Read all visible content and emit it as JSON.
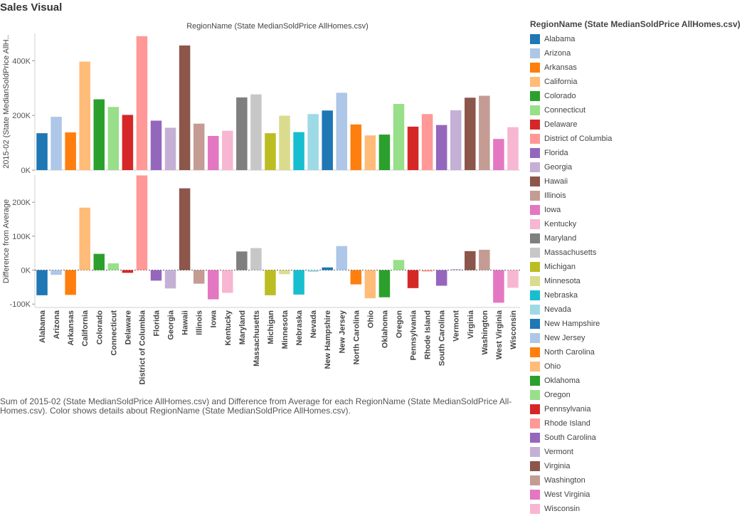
{
  "page": {
    "title": "Sales Visual"
  },
  "caption": "Sum of 2015-02 (State MedianSoldPrice AllHomes.csv) and Difference from Average for each RegionName (State MedianSoldPrice All-Homes.csv).  Color shows details about RegionName (State MedianSoldPrice AllHomes.csv).",
  "legend": {
    "title": "RegionName (State MedianSoldPrice AllHomes.csv)"
  },
  "chart_data": {
    "type": "bar",
    "title": "RegionName (State MedianSoldPrice AllHomes.csv)",
    "categories": [
      "Alabama",
      "Arizona",
      "Arkansas",
      "California",
      "Colorado",
      "Connecticut",
      "Delaware",
      "District of Columbia",
      "Florida",
      "Georgia",
      "Hawaii",
      "Illinois",
      "Iowa",
      "Kentucky",
      "Maryland",
      "Massachusetts",
      "Michigan",
      "Minnesota",
      "Nebraska",
      "Nevada",
      "New Hampshire",
      "New Jersey",
      "North Carolina",
      "Ohio",
      "Oklahoma",
      "Oregon",
      "Pennsylvania",
      "Rhode Island",
      "South Carolina",
      "Vermont",
      "Virginia",
      "Washington",
      "West Virginia",
      "Wisconsin"
    ],
    "colors": [
      "#1f77b4",
      "#aec7e8",
      "#ff7f0e",
      "#ffbb78",
      "#2ca02c",
      "#98df8a",
      "#d62728",
      "#ff9896",
      "#9467bd",
      "#c5b0d5",
      "#8c564b",
      "#c49c94",
      "#e377c2",
      "#f7b6d2",
      "#7f7f7f",
      "#c7c7c7",
      "#bcbd22",
      "#dbdb8d",
      "#17becf",
      "#9edae5",
      "#1f77b4",
      "#aec7e8",
      "#ff7f0e",
      "#ffbb78",
      "#2ca02c",
      "#98df8a",
      "#d62728",
      "#ff9896",
      "#9467bd",
      "#c5b0d5",
      "#8c564b",
      "#c49c94",
      "#e377c2",
      "#f7b6d2"
    ],
    "panels": [
      {
        "ylabel": "2015-02 (State MedianSoldPrice AllH..",
        "ylim": [
          0,
          500000
        ],
        "ticks": [
          0,
          200000,
          400000
        ],
        "tick_labels": [
          "0K",
          "200K",
          "400K"
        ],
        "values": [
          135000,
          195000,
          138000,
          397000,
          259000,
          231000,
          202000,
          490000,
          181000,
          155000,
          456000,
          170000,
          125000,
          144000,
          266000,
          277000,
          135000,
          199000,
          139000,
          205000,
          218000,
          283000,
          167000,
          127000,
          130000,
          242000,
          159000,
          205000,
          165000,
          219000,
          265000,
          272000,
          114000,
          157000
        ]
      },
      {
        "ylabel": "Difference from Average",
        "ylim": [
          -110000,
          280000
        ],
        "ticks": [
          -100000,
          0,
          100000,
          200000
        ],
        "tick_labels": [
          "-100K",
          "0K",
          "100K",
          "200K"
        ],
        "values": [
          -74000,
          -14000,
          -73000,
          184000,
          48000,
          20000,
          -8000,
          279000,
          -31000,
          -54000,
          241000,
          -40000,
          -86000,
          -67000,
          55000,
          65000,
          -74000,
          -12000,
          -72000,
          -5000,
          8000,
          71000,
          -42000,
          -83000,
          -80000,
          30000,
          -53000,
          -4000,
          -46000,
          3000,
          56000,
          60000,
          -96000,
          -52000
        ]
      }
    ],
    "grid": false,
    "legend_position": "right"
  }
}
